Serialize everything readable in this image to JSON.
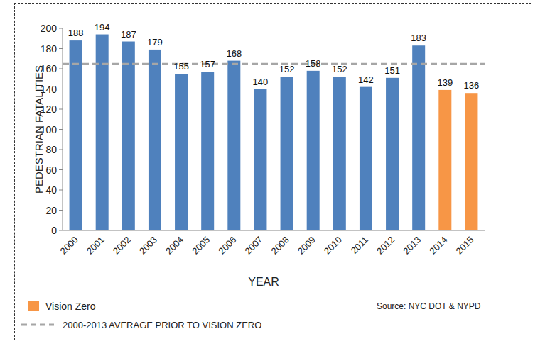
{
  "chart_data": {
    "type": "bar",
    "categories": [
      "2000",
      "2001",
      "2002",
      "2003",
      "2004",
      "2005",
      "2006",
      "2007",
      "2008",
      "2009",
      "2010",
      "2011",
      "2012",
      "2013",
      "2014",
      "2015"
    ],
    "values": [
      188,
      194,
      187,
      179,
      155,
      157,
      168,
      140,
      152,
      158,
      152,
      142,
      151,
      183,
      139,
      136
    ],
    "colors": [
      "#4f81bd",
      "#4f81bd",
      "#4f81bd",
      "#4f81bd",
      "#4f81bd",
      "#4f81bd",
      "#4f81bd",
      "#4f81bd",
      "#4f81bd",
      "#4f81bd",
      "#4f81bd",
      "#4f81bd",
      "#4f81bd",
      "#4f81bd",
      "#f79646",
      "#f79646"
    ],
    "data_labels": true,
    "ylim": [
      0,
      200
    ],
    "yticks": [
      0,
      20,
      40,
      60,
      80,
      100,
      120,
      140,
      160,
      180,
      200
    ],
    "y_label": "PEDESTRIAN FATALITIES",
    "x_label": "YEAR",
    "legend_items": [
      {
        "name": "Vision Zero",
        "color": "#f79646"
      }
    ],
    "reference_line": {
      "name": "2000-2013 AVERAGE PRIOR TO VISION ZERO",
      "value": 164.7,
      "color": "#a6a6a6",
      "line_style": "dashed"
    },
    "source": "Source: NYC DOT & NYPD"
  }
}
